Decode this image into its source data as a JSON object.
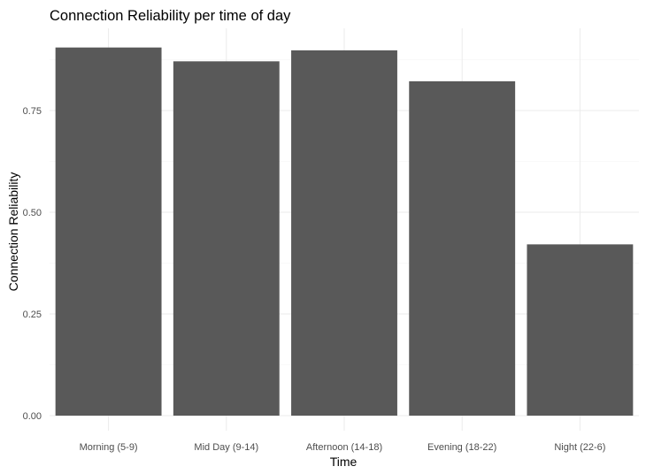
{
  "chart_data": {
    "type": "bar",
    "title": "Connection Reliability per time of day",
    "xlabel": "Time",
    "ylabel": "Connection Reliability",
    "categories": [
      "Morning (5-9)",
      "Mid Day (9-14)",
      "Afternoon (14-18)",
      "Evening (18-22)",
      "Night (22-6)"
    ],
    "values": [
      0.905,
      0.871,
      0.898,
      0.822,
      0.421
    ],
    "ylim": [
      0,
      0.95
    ],
    "yticks": [
      0,
      0.25,
      0.5,
      0.75
    ],
    "ytick_labels": [
      "0.00",
      "0.25",
      "0.50",
      "0.75"
    ],
    "grid": true,
    "bar_color": "#595959",
    "legend": "none"
  }
}
